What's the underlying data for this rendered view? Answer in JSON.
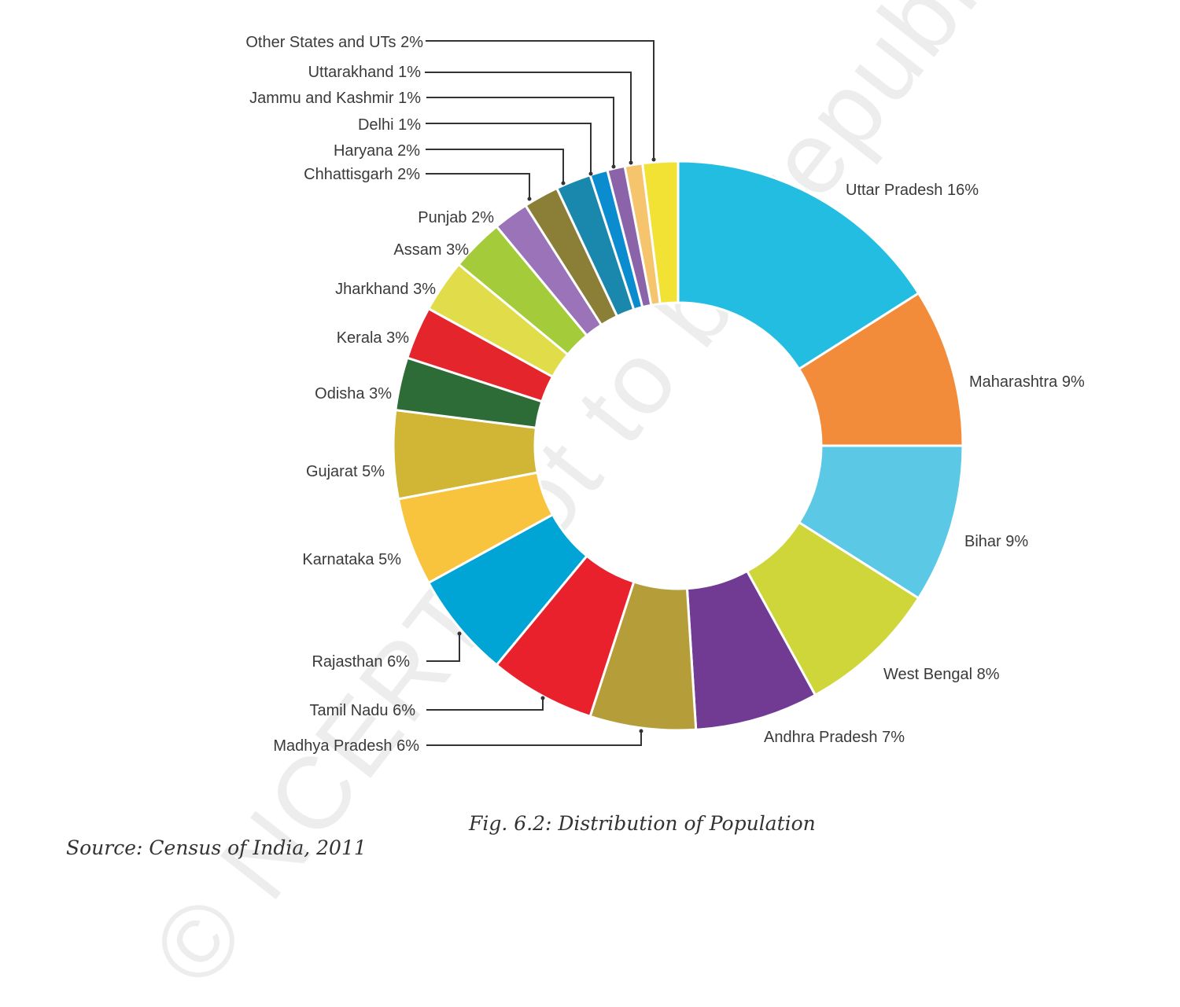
{
  "chart_data": {
    "type": "pie",
    "style": "donut",
    "title": "Fig. 6.2: Distribution of Population",
    "source": "Source: Census of India, 2011",
    "watermark": "© NCERT not to be republished",
    "slices": [
      {
        "label": "Uttar Pradesh 16%",
        "value": 16,
        "color": "#22bde0"
      },
      {
        "label": "Maharashtra 9%",
        "value": 9,
        "color": "#f28c3a"
      },
      {
        "label": "Bihar 9%",
        "value": 9,
        "color": "#5bc8e6"
      },
      {
        "label": "West Bengal 8%",
        "value": 8,
        "color": "#cfd63a"
      },
      {
        "label": "Andhra Pradesh 7%",
        "value": 7,
        "color": "#713b93"
      },
      {
        "label": "Madhya Pradesh 6%",
        "value": 6,
        "color": "#b59e3a"
      },
      {
        "label": "Tamil Nadu 6%",
        "value": 6,
        "color": "#e8212d"
      },
      {
        "label": "Rajasthan 6%",
        "value": 6,
        "color": "#00a5d6"
      },
      {
        "label": "Karnataka 5%",
        "value": 5,
        "color": "#f8c43e"
      },
      {
        "label": "Gujarat 5%",
        "value": 5,
        "color": "#d0b634"
      },
      {
        "label": "Odisha 3%",
        "value": 3,
        "color": "#2d6b37"
      },
      {
        "label": "Kerala 3%",
        "value": 3,
        "color": "#e4252c"
      },
      {
        "label": "Jharkhand 3%",
        "value": 3,
        "color": "#e1dd4a"
      },
      {
        "label": "Assam 3%",
        "value": 3,
        "color": "#a3cb3a"
      },
      {
        "label": "Punjab 2%",
        "value": 2,
        "color": "#9b73b8"
      },
      {
        "label": "Chhattisgarh 2%",
        "value": 2,
        "color": "#8b7f37"
      },
      {
        "label": "Haryana 2%",
        "value": 2,
        "color": "#1a87ac"
      },
      {
        "label": "Delhi 1%",
        "value": 1,
        "color": "#0b8ccf"
      },
      {
        "label": "Jammu and Kashmir 1%",
        "value": 1,
        "color": "#8b63a8"
      },
      {
        "label": "Uttarakhand 1%",
        "value": 1,
        "color": "#f6c46c"
      },
      {
        "label": "Other States and UTs 2%",
        "value": 2,
        "color": "#f2e234"
      }
    ]
  }
}
